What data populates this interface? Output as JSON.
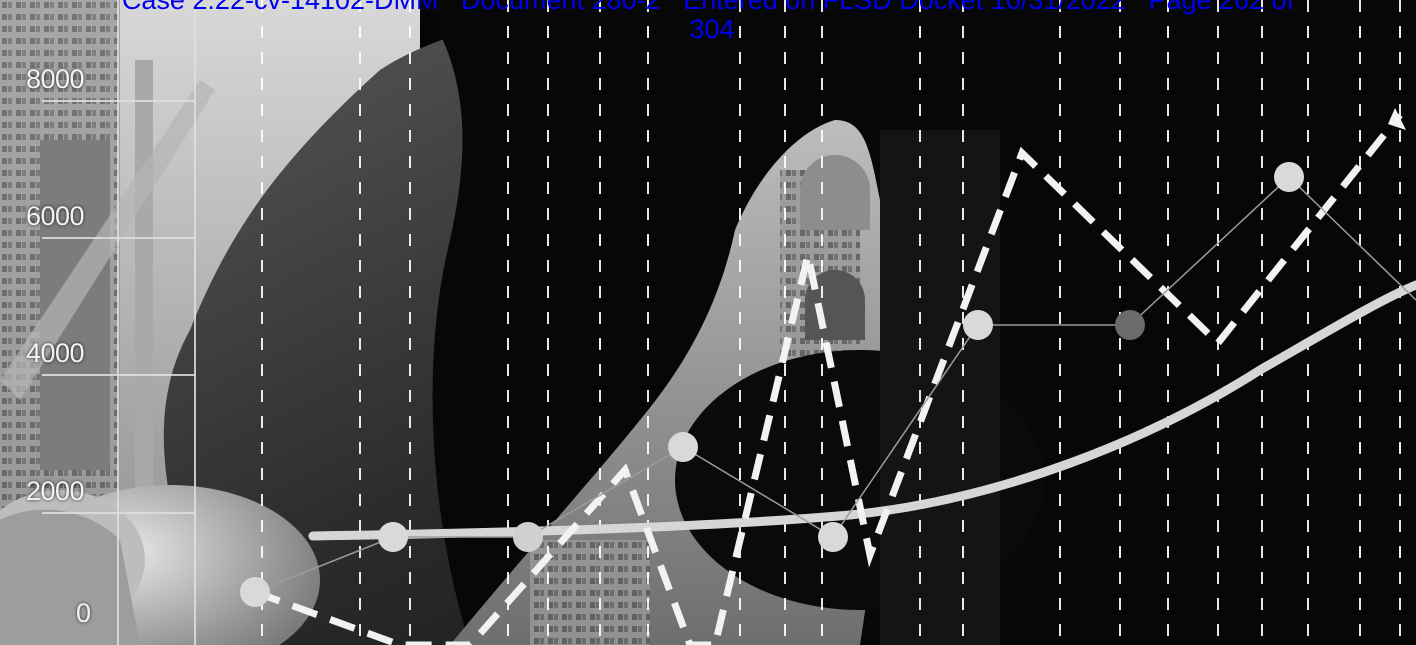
{
  "docket_stamp": {
    "line1_a": "Case 2:22-cv-14102-DMM",
    "line1_b": "Document 280-2",
    "line1_c": "Entered on FLSD Docket 10/31/2022",
    "line1_d": "Page 262 of",
    "line2": "304",
    "color_link": "#0000ee",
    "color_accent": "#2bd42b"
  },
  "y_axis": {
    "ticks": [
      "8000",
      "6000",
      "4000",
      "2000",
      "0"
    ]
  },
  "colors": {
    "background": "#050505",
    "line": "#e6e6e6",
    "marker": "#d9d9d9",
    "marker_dark": "#6b6b6b"
  }
}
